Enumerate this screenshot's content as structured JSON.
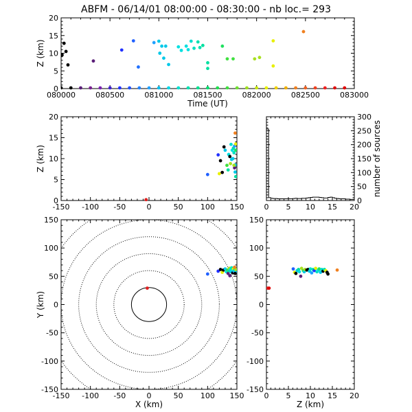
{
  "title": "ABFM - 06/14/01 08:00:00 - 08:30:00 - nb loc.=     293",
  "chart_data": [
    {
      "id": "z-vs-time",
      "type": "scatter",
      "xlabel": "Time (UT)",
      "ylabel": "Z (km)",
      "xlim": [
        80000,
        83000
      ],
      "ylim": [
        0,
        20
      ],
      "x_ticks": [
        "080000",
        "080500",
        "081000",
        "081500",
        "082000",
        "082500",
        "083000"
      ],
      "y_ticks": [
        "0",
        "5",
        "10",
        "15",
        "20"
      ],
      "points": [
        {
          "t": 80010,
          "z": 9.5,
          "c": "#000000"
        },
        {
          "t": 80030,
          "z": 12.8,
          "c": "#000000"
        },
        {
          "t": 80050,
          "z": 10.5,
          "c": "#000000"
        },
        {
          "t": 80070,
          "z": 6.7,
          "c": "#000000"
        },
        {
          "t": 80330,
          "z": 7.8,
          "c": "#5a1e78"
        },
        {
          "t": 80620,
          "z": 10.9,
          "c": "#2030ff"
        },
        {
          "t": 80740,
          "z": 13.5,
          "c": "#2060ff"
        },
        {
          "t": 80790,
          "z": 6.1,
          "c": "#2070ff"
        },
        {
          "t": 80950,
          "z": 13.0,
          "c": "#20a0ff"
        },
        {
          "t": 81000,
          "z": 13.4,
          "c": "#00c8e8"
        },
        {
          "t": 81010,
          "z": 10.0,
          "c": "#00c8e8"
        },
        {
          "t": 81030,
          "z": 12.0,
          "c": "#00c8e8"
        },
        {
          "t": 81050,
          "z": 8.6,
          "c": "#00c8e8"
        },
        {
          "t": 81070,
          "z": 12.0,
          "c": "#00c8e8"
        },
        {
          "t": 81100,
          "z": 6.8,
          "c": "#00c8e8"
        },
        {
          "t": 81200,
          "z": 11.8,
          "c": "#00e0e0"
        },
        {
          "t": 81230,
          "z": 10.8,
          "c": "#00e0e0"
        },
        {
          "t": 81280,
          "z": 12.0,
          "c": "#00e0e0"
        },
        {
          "t": 81300,
          "z": 11.0,
          "c": "#00e0e0"
        },
        {
          "t": 81330,
          "z": 13.4,
          "c": "#00e0d0"
        },
        {
          "t": 81360,
          "z": 11.4,
          "c": "#00e0c0"
        },
        {
          "t": 81400,
          "z": 13.2,
          "c": "#00e0b0"
        },
        {
          "t": 81420,
          "z": 11.6,
          "c": "#00e0b0"
        },
        {
          "t": 81450,
          "z": 12.2,
          "c": "#00e0a0"
        },
        {
          "t": 81500,
          "z": 7.3,
          "c": "#00e0a0"
        },
        {
          "t": 81500,
          "z": 5.7,
          "c": "#00e0a0"
        },
        {
          "t": 81650,
          "z": 12.0,
          "c": "#20e060"
        },
        {
          "t": 81700,
          "z": 8.4,
          "c": "#40e040"
        },
        {
          "t": 81760,
          "z": 8.4,
          "c": "#40e040"
        },
        {
          "t": 81980,
          "z": 8.4,
          "c": "#a8e020"
        },
        {
          "t": 82030,
          "z": 8.8,
          "c": "#a8e020"
        },
        {
          "t": 82170,
          "z": 13.5,
          "c": "#e8f000"
        },
        {
          "t": 82170,
          "z": 6.4,
          "c": "#e8f000"
        },
        {
          "t": 82480,
          "z": 16.1,
          "c": "#f08020"
        },
        {
          "t": 80000,
          "z": 0.2,
          "c": "#000000"
        },
        {
          "t": 80100,
          "z": 0.2,
          "c": "#000000"
        },
        {
          "t": 80200,
          "z": 0.2,
          "c": "#5a1e78"
        },
        {
          "t": 80300,
          "z": 0.2,
          "c": "#7a2090"
        },
        {
          "t": 80400,
          "z": 0.2,
          "c": "#7a20b0"
        },
        {
          "t": 80500,
          "z": 0.2,
          "c": "#4020d0"
        },
        {
          "t": 80600,
          "z": 0.2,
          "c": "#2030ff"
        },
        {
          "t": 80700,
          "z": 0.2,
          "c": "#2050ff"
        },
        {
          "t": 80800,
          "z": 0.2,
          "c": "#2080ff"
        },
        {
          "t": 80900,
          "z": 0.2,
          "c": "#20a0ff"
        },
        {
          "t": 81000,
          "z": 0.2,
          "c": "#00c0f0"
        },
        {
          "t": 81100,
          "z": 0.2,
          "c": "#00d8e8"
        },
        {
          "t": 81200,
          "z": 0.2,
          "c": "#00e0d0"
        },
        {
          "t": 81300,
          "z": 0.2,
          "c": "#00e0b0"
        },
        {
          "t": 81400,
          "z": 0.2,
          "c": "#00e090"
        },
        {
          "t": 81500,
          "z": 0.2,
          "c": "#00e070"
        },
        {
          "t": 81600,
          "z": 0.2,
          "c": "#20e050"
        },
        {
          "t": 81700,
          "z": 0.2,
          "c": "#40e040"
        },
        {
          "t": 81800,
          "z": 0.2,
          "c": "#70e030"
        },
        {
          "t": 81900,
          "z": 0.2,
          "c": "#a0e020"
        },
        {
          "t": 82000,
          "z": 0.2,
          "c": "#c8e810"
        },
        {
          "t": 82100,
          "z": 0.2,
          "c": "#e8f000"
        },
        {
          "t": 82200,
          "z": 0.2,
          "c": "#f0d000"
        },
        {
          "t": 82300,
          "z": 0.2,
          "c": "#f0b000"
        },
        {
          "t": 82400,
          "z": 0.2,
          "c": "#f08020"
        },
        {
          "t": 82500,
          "z": 0.2,
          "c": "#f06020"
        },
        {
          "t": 82600,
          "z": 0.2,
          "c": "#f04020"
        },
        {
          "t": 82700,
          "z": 0.2,
          "c": "#f02020"
        },
        {
          "t": 82800,
          "z": 0.2,
          "c": "#e01010"
        },
        {
          "t": 82900,
          "z": 0.2,
          "c": "#e00000"
        }
      ]
    },
    {
      "id": "z-vs-x",
      "type": "scatter",
      "xlabel": "",
      "ylabel": "Z (km)",
      "xlim": [
        -150,
        150
      ],
      "ylim": [
        0,
        20
      ],
      "x_ticks": [
        "-150",
        "-100",
        "-50",
        "0",
        "50",
        "100",
        "150"
      ],
      "y_ticks": [
        "0",
        "5",
        "10",
        "15",
        "20"
      ],
      "points": [
        {
          "x": -5,
          "z": 0.2,
          "c": "#e02020"
        },
        {
          "x": 100,
          "z": 6.2,
          "c": "#2060ff"
        },
        {
          "x": 118,
          "z": 10.9,
          "c": "#2030ff"
        },
        {
          "x": 120,
          "z": 6.4,
          "c": "#e8f000"
        },
        {
          "x": 122,
          "z": 9.5,
          "c": "#000000"
        },
        {
          "x": 125,
          "z": 6.7,
          "c": "#000000"
        },
        {
          "x": 128,
          "z": 12.8,
          "c": "#000000"
        },
        {
          "x": 130,
          "z": 12.0,
          "c": "#00c8e8"
        },
        {
          "x": 133,
          "z": 8.4,
          "c": "#40e040"
        },
        {
          "x": 135,
          "z": 7.3,
          "c": "#00e0a0"
        },
        {
          "x": 136,
          "z": 11.0,
          "c": "#00e0e0"
        },
        {
          "x": 138,
          "z": 10.5,
          "c": "#000000"
        },
        {
          "x": 139,
          "z": 8.8,
          "c": "#a8e020"
        },
        {
          "x": 140,
          "z": 13.4,
          "c": "#00e0d0"
        },
        {
          "x": 141,
          "z": 9.8,
          "c": "#00c8e8"
        },
        {
          "x": 142,
          "z": 12.0,
          "c": "#00e0e0"
        },
        {
          "x": 143,
          "z": 10.0,
          "c": "#00c8e8"
        },
        {
          "x": 144,
          "z": 12.5,
          "c": "#00e0b0"
        },
        {
          "x": 145,
          "z": 11.4,
          "c": "#00e0c0"
        },
        {
          "x": 146,
          "z": 13.0,
          "c": "#20a0ff"
        },
        {
          "x": 146,
          "z": 7.8,
          "c": "#5a1e78"
        },
        {
          "x": 147,
          "z": 8.5,
          "c": "#00c8e8"
        },
        {
          "x": 147,
          "z": 6.8,
          "c": "#00c8e8"
        },
        {
          "x": 148,
          "z": 12.0,
          "c": "#20e060"
        },
        {
          "x": 148,
          "z": 5.7,
          "c": "#00e0a0"
        },
        {
          "x": 148,
          "z": 13.5,
          "c": "#e8f000"
        },
        {
          "x": 147,
          "z": 16.1,
          "c": "#f08020"
        },
        {
          "x": 145,
          "z": 8.4,
          "c": "#a8e020"
        }
      ]
    },
    {
      "id": "source-histogram",
      "type": "histogram",
      "xlabel": "",
      "ylabel": "number of sources",
      "xlim": [
        0,
        20
      ],
      "ylim": [
        0,
        300
      ],
      "x_ticks": [
        "0",
        "5",
        "10",
        "15",
        "20"
      ],
      "y_ticks": [
        "0",
        "50",
        "100",
        "150",
        "200",
        "250",
        "300"
      ],
      "bin_width": 0.5,
      "counts": [
        256,
        10,
        8,
        7,
        7,
        6,
        6,
        6,
        6,
        6,
        6,
        6,
        7,
        8,
        7,
        7,
        8,
        8,
        9,
        10,
        11,
        12,
        12,
        12,
        11,
        10,
        9,
        9,
        11,
        12,
        10,
        8,
        7,
        6,
        6,
        6,
        5,
        5,
        4,
        4
      ]
    },
    {
      "id": "y-vs-x-map",
      "type": "scatter",
      "xlabel": "X (km)",
      "ylabel": "Y (km)",
      "xlim": [
        -150,
        150
      ],
      "ylim": [
        -150,
        150
      ],
      "x_ticks": [
        "-150",
        "-100",
        "-50",
        "0",
        "50",
        "100",
        "150"
      ],
      "y_ticks": [
        "-150",
        "-100",
        "-50",
        "0",
        "50",
        "100",
        "150"
      ],
      "range_rings_km": [
        30,
        60,
        90,
        120,
        150,
        180
      ],
      "points": [
        {
          "x": -3,
          "y": 29,
          "c": "#e02020"
        },
        {
          "x": 100,
          "y": 54,
          "c": "#2060ff"
        },
        {
          "x": 118,
          "y": 59,
          "c": "#2030ff"
        },
        {
          "x": 122,
          "y": 62,
          "c": "#000000"
        },
        {
          "x": 125,
          "y": 57,
          "c": "#e8f000"
        },
        {
          "x": 127,
          "y": 61,
          "c": "#000000"
        },
        {
          "x": 130,
          "y": 63,
          "c": "#00c8e8"
        },
        {
          "x": 132,
          "y": 58,
          "c": "#00e0e0"
        },
        {
          "x": 134,
          "y": 61,
          "c": "#40e040"
        },
        {
          "x": 135,
          "y": 55,
          "c": "#5a1e78"
        },
        {
          "x": 136,
          "y": 60,
          "c": "#00e0a0"
        },
        {
          "x": 137,
          "y": 64,
          "c": "#a8e020"
        },
        {
          "x": 138,
          "y": 51,
          "c": "#5a1e78"
        },
        {
          "x": 139,
          "y": 62,
          "c": "#00e0d0"
        },
        {
          "x": 140,
          "y": 58,
          "c": "#00c8e8"
        },
        {
          "x": 141,
          "y": 65,
          "c": "#00e0b0"
        },
        {
          "x": 142,
          "y": 60,
          "c": "#00e0e0"
        },
        {
          "x": 143,
          "y": 56,
          "c": "#000000"
        },
        {
          "x": 144,
          "y": 63,
          "c": "#e8f000"
        },
        {
          "x": 145,
          "y": 59,
          "c": "#20a0ff"
        },
        {
          "x": 146,
          "y": 61,
          "c": "#00e0c0"
        },
        {
          "x": 147,
          "y": 64,
          "c": "#20e060"
        },
        {
          "x": 148,
          "y": 57,
          "c": "#00c8e8"
        },
        {
          "x": 148,
          "y": 62,
          "c": "#a8e020"
        },
        {
          "x": 147,
          "y": 55,
          "c": "#000000"
        },
        {
          "x": 146,
          "y": 66,
          "c": "#f08020"
        }
      ]
    },
    {
      "id": "y-vs-z",
      "type": "scatter",
      "xlabel": "Z (km)",
      "ylabel": "",
      "xlim": [
        0,
        20
      ],
      "ylim": [
        -150,
        150
      ],
      "x_ticks": [
        "0",
        "5",
        "10",
        "15",
        "20"
      ],
      "y_ticks": [
        "-150",
        "-100",
        "-50",
        "0",
        "50",
        "100",
        "150"
      ],
      "points": [
        {
          "z": 0.3,
          "y": 29,
          "c": "#e02020"
        },
        {
          "z": 0.6,
          "y": 29,
          "c": "#e00000"
        },
        {
          "z": 6.1,
          "y": 63,
          "c": "#2060ff"
        },
        {
          "z": 6.4,
          "y": 57,
          "c": "#e8f000"
        },
        {
          "z": 6.7,
          "y": 55,
          "c": "#000000"
        },
        {
          "z": 7.0,
          "y": 60,
          "c": "#00c8e8"
        },
        {
          "z": 7.3,
          "y": 62,
          "c": "#00e0a0"
        },
        {
          "z": 7.5,
          "y": 58,
          "c": "#00e0e0"
        },
        {
          "z": 7.8,
          "y": 50,
          "c": "#5a1e78"
        },
        {
          "z": 8.0,
          "y": 64,
          "c": "#a8e020"
        },
        {
          "z": 8.4,
          "y": 60,
          "c": "#40e040"
        },
        {
          "z": 8.6,
          "y": 58,
          "c": "#00c8e8"
        },
        {
          "z": 8.8,
          "y": 62,
          "c": "#a8e020"
        },
        {
          "z": 9.2,
          "y": 61,
          "c": "#000000"
        },
        {
          "z": 9.5,
          "y": 62,
          "c": "#000000"
        },
        {
          "z": 9.8,
          "y": 59,
          "c": "#00c8e8"
        },
        {
          "z": 10.0,
          "y": 63,
          "c": "#00e0d0"
        },
        {
          "z": 10.3,
          "y": 56,
          "c": "#20a0ff"
        },
        {
          "z": 10.6,
          "y": 62,
          "c": "#00e0b0"
        },
        {
          "z": 10.9,
          "y": 60,
          "c": "#2030ff"
        },
        {
          "z": 11.2,
          "y": 64,
          "c": "#e8f000"
        },
        {
          "z": 11.5,
          "y": 58,
          "c": "#00e0c0"
        },
        {
          "z": 11.8,
          "y": 61,
          "c": "#00e0e0"
        },
        {
          "z": 12.0,
          "y": 63,
          "c": "#20e060"
        },
        {
          "z": 12.3,
          "y": 57,
          "c": "#00c8e8"
        },
        {
          "z": 12.6,
          "y": 62,
          "c": "#00e0d0"
        },
        {
          "z": 12.9,
          "y": 59,
          "c": "#000000"
        },
        {
          "z": 13.2,
          "y": 62,
          "c": "#00e0b0"
        },
        {
          "z": 13.5,
          "y": 60,
          "c": "#e8f000"
        },
        {
          "z": 13.8,
          "y": 57,
          "c": "#000000"
        },
        {
          "z": 14.0,
          "y": 54,
          "c": "#000000"
        },
        {
          "z": 16.1,
          "y": 61,
          "c": "#f08020"
        }
      ]
    }
  ]
}
